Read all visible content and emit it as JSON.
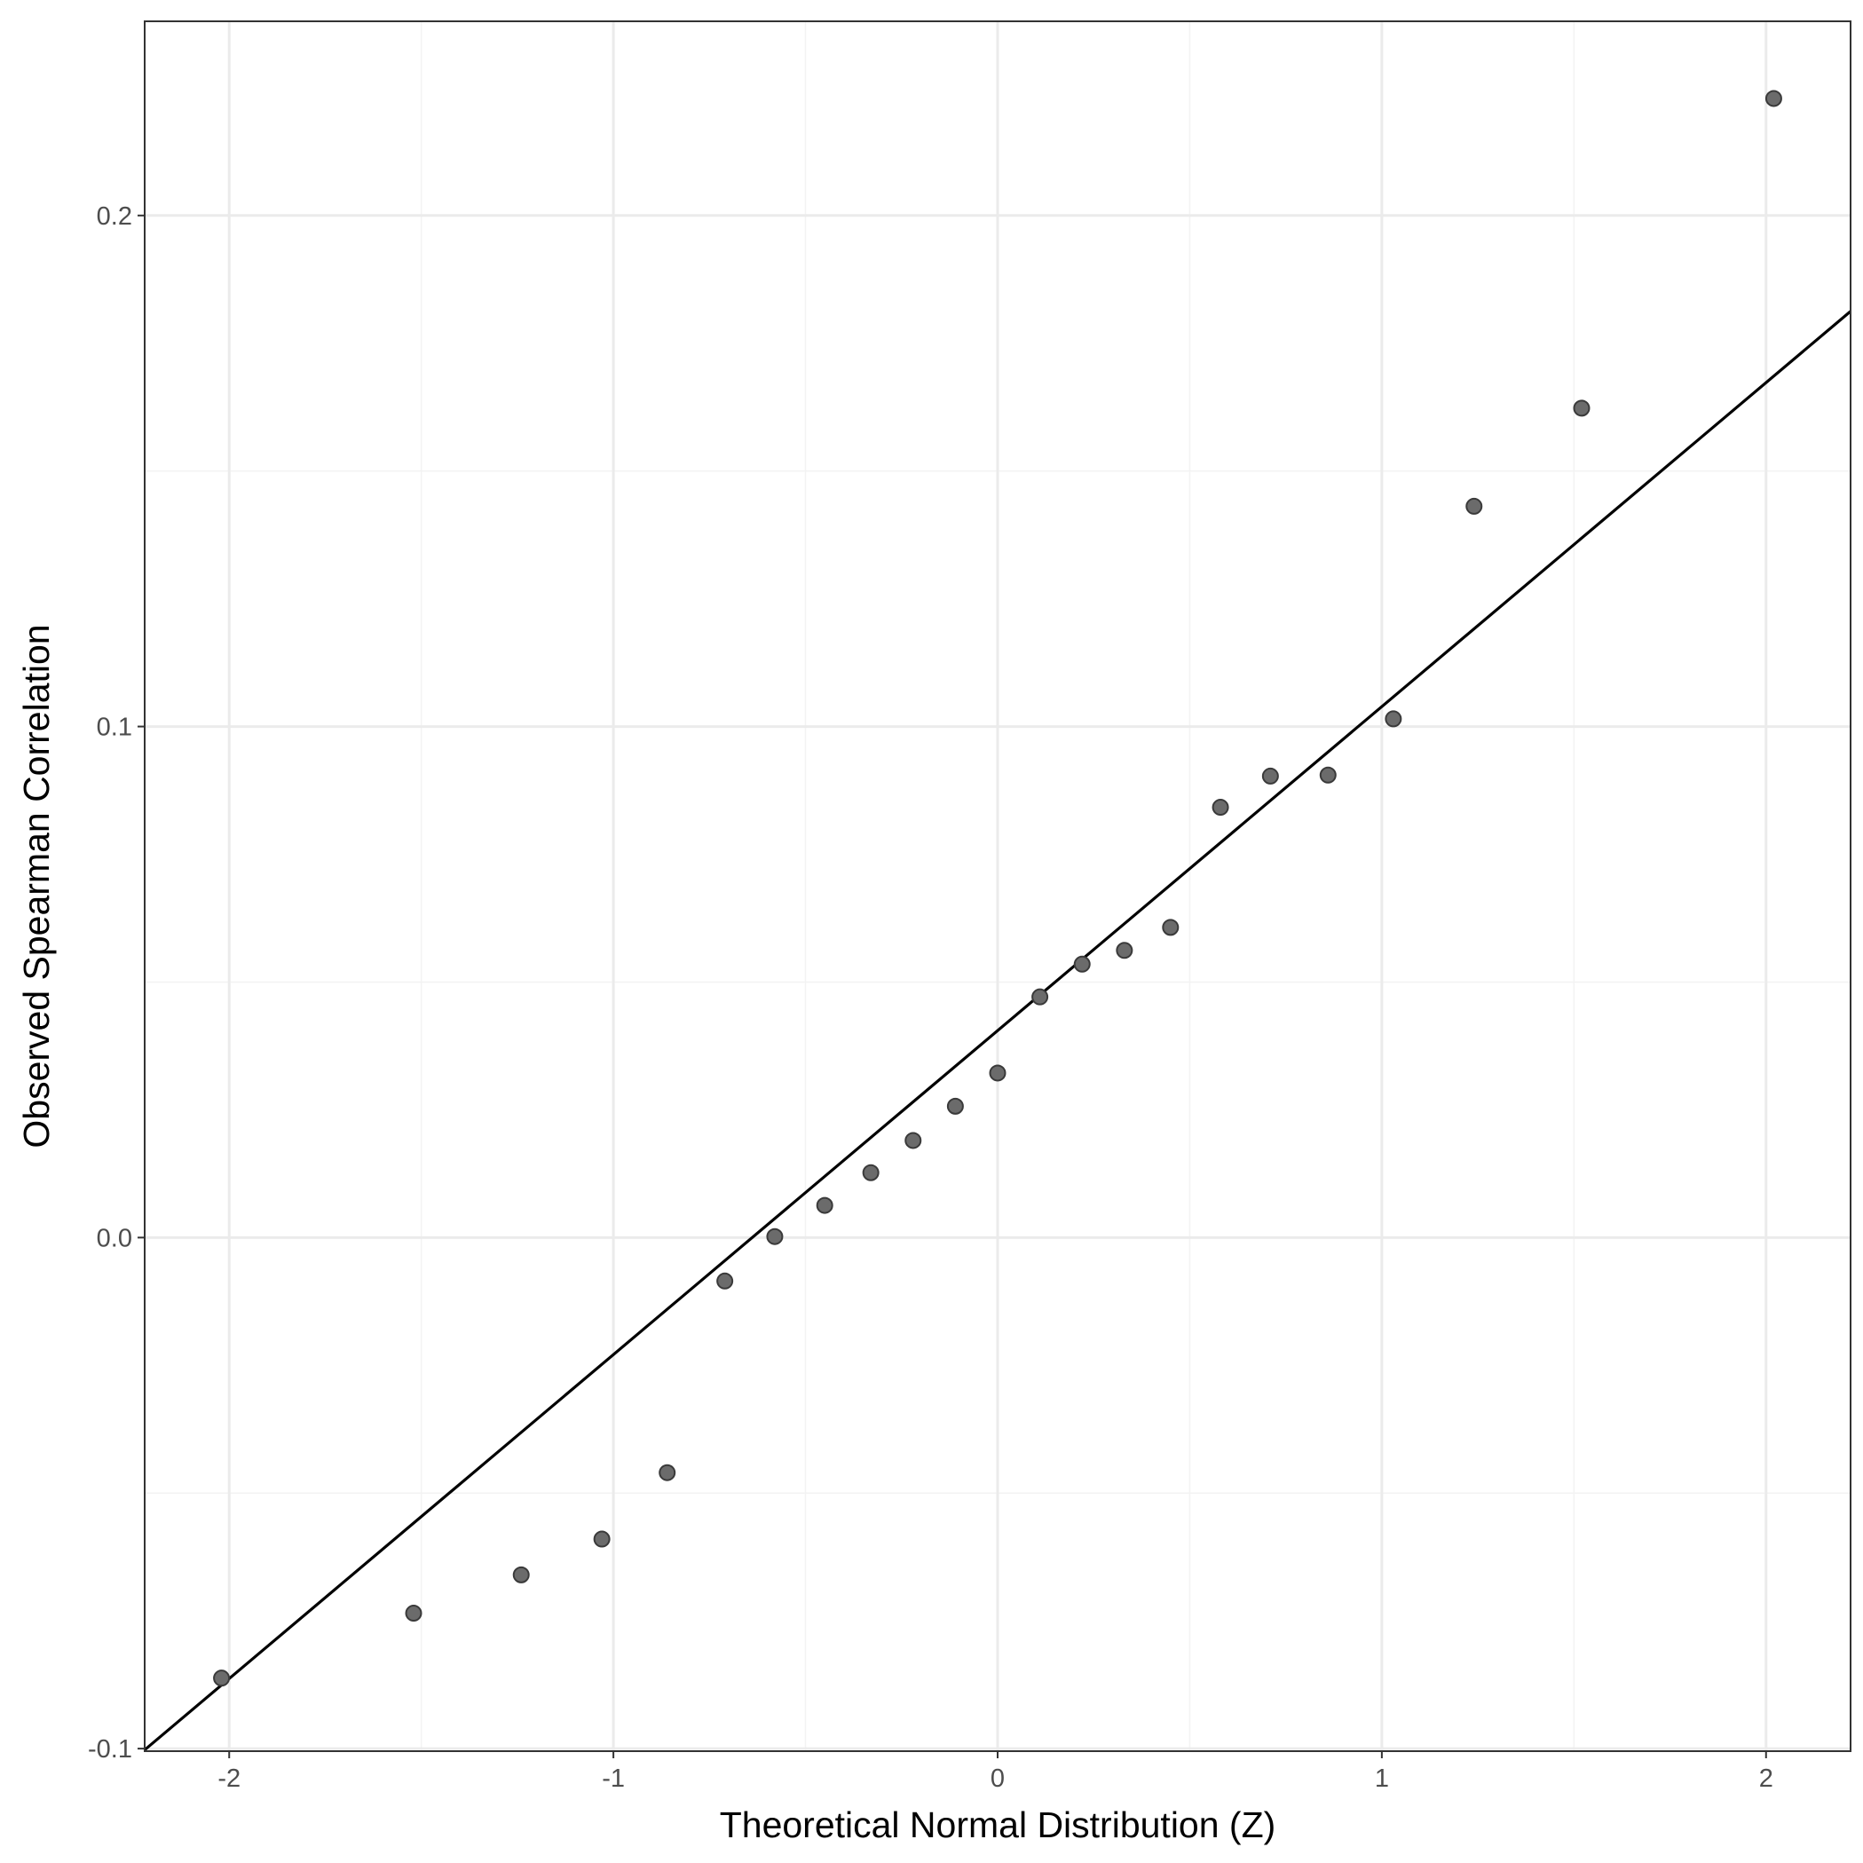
{
  "chart_data": {
    "type": "scatter",
    "title": "",
    "xlabel": "Theoretical Normal Distribution (Z)",
    "ylabel": "Observed Spearman Correlation",
    "xlim": [
      -2.22,
      2.22
    ],
    "ylim": [
      -0.1005,
      0.238
    ],
    "x_ticks": [
      -2,
      -1,
      0,
      1,
      2
    ],
    "x_tick_labels": [
      "-2",
      "-1",
      "0",
      "1",
      "2"
    ],
    "y_ticks": [
      -0.1,
      0.0,
      0.1,
      0.2
    ],
    "y_tick_labels": [
      "-0.1",
      "0.0",
      "0.1",
      "0.2"
    ],
    "x_minor_grid": [
      -1.5,
      -0.5,
      0.5,
      1.5
    ],
    "y_minor_grid": [
      -0.05,
      0.05,
      0.15
    ],
    "grid": true,
    "points": {
      "x": [
        -2.02,
        -1.52,
        -1.24,
        -1.03,
        -0.86,
        -0.71,
        -0.58,
        -0.45,
        -0.33,
        -0.22,
        -0.11,
        0.0,
        0.11,
        0.22,
        0.33,
        0.45,
        0.58,
        0.71,
        0.86,
        1.03,
        1.24,
        1.52,
        2.02
      ],
      "y": [
        -0.0862,
        -0.0735,
        -0.066,
        -0.059,
        -0.046,
        -0.0085,
        0.0002,
        0.0063,
        0.0127,
        0.019,
        0.0257,
        0.0322,
        0.0471,
        0.0535,
        0.0562,
        0.0607,
        0.0842,
        0.0903,
        0.0905,
        0.1015,
        0.1431,
        0.1623,
        0.2229
      ]
    },
    "reference_line": {
      "intercept": 0.0405,
      "slope": 0.0634
    },
    "colors": {
      "points_fill": "#6b6b6b",
      "points_stroke": "#3a3a3a",
      "line": "#000000",
      "grid_major": "#ebebeb",
      "grid_minor": "#f3f3f3",
      "panel_border": "#333333"
    }
  }
}
